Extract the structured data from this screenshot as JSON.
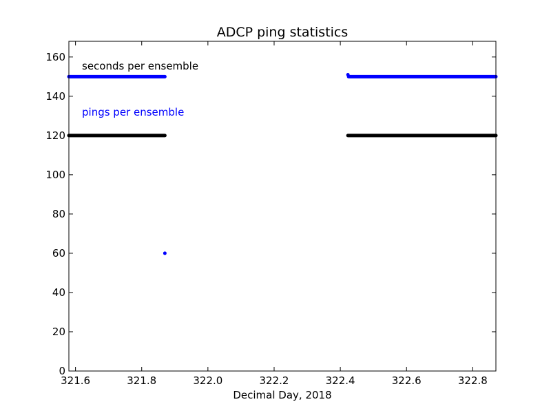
{
  "chart_data": {
    "type": "scatter",
    "title": "ADCP  ping statistics",
    "xlabel": "Decimal Day, 2018",
    "ylabel": "",
    "xlim": [
      321.58,
      322.87
    ],
    "ylim": [
      0,
      168
    ],
    "xticks": [
      321.6,
      321.8,
      322.0,
      322.2,
      322.4,
      322.6,
      322.8
    ],
    "xtick_labels": [
      "321.6",
      "321.8",
      "322.0",
      "322.2",
      "322.4",
      "322.6",
      "322.8"
    ],
    "yticks": [
      0,
      20,
      40,
      60,
      80,
      100,
      120,
      140,
      160
    ],
    "ytick_labels": [
      "0",
      "20",
      "40",
      "60",
      "80",
      "100",
      "120",
      "140",
      "160"
    ],
    "grid": false,
    "annotations": [
      {
        "text": "seconds per ensemble",
        "color": "#000000"
      },
      {
        "text": "pings per ensemble",
        "color": "#0000ff"
      }
    ],
    "series": [
      {
        "color": "#0000ff",
        "segments": [
          {
            "x_start": 321.58,
            "x_end": 321.87,
            "y": 150
          },
          {
            "x_start": 322.425,
            "x_end": 322.87,
            "y": 150
          }
        ],
        "points": [
          {
            "x": 321.87,
            "y": 60
          },
          {
            "x": 322.423,
            "y": 151
          }
        ]
      },
      {
        "color": "#000000",
        "segments": [
          {
            "x_start": 321.58,
            "x_end": 321.87,
            "y": 120
          },
          {
            "x_start": 322.423,
            "x_end": 322.87,
            "y": 120
          }
        ],
        "points": []
      }
    ]
  }
}
